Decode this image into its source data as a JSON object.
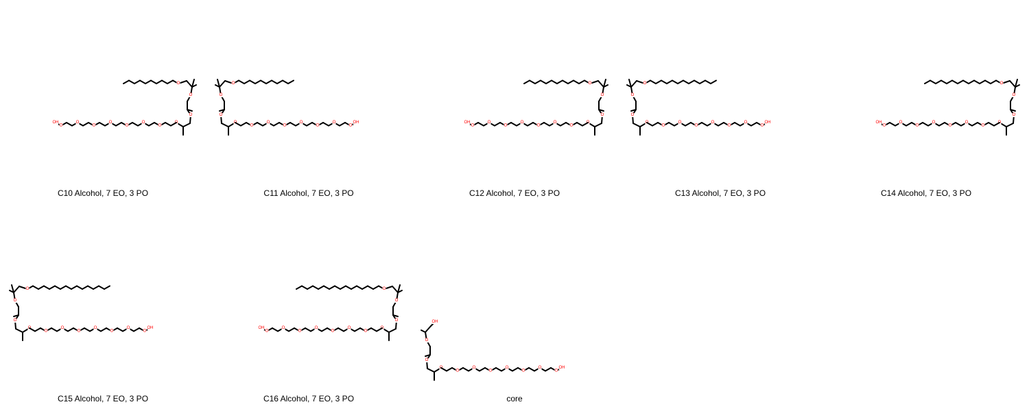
{
  "molecules": [
    {
      "caption": "C10 Alcohol, 7 EO, 3 PO",
      "alkyl_carbons": 10,
      "eo_units": 7,
      "po_units": 3,
      "terminal_group": "OH",
      "ring_atom": "O"
    },
    {
      "caption": "C11 Alcohol, 7 EO, 3 PO",
      "alkyl_carbons": 11,
      "eo_units": 7,
      "po_units": 3,
      "terminal_group": "OH",
      "ring_atom": "O"
    },
    {
      "caption": "C12 Alcohol, 7 EO, 3 PO",
      "alkyl_carbons": 12,
      "eo_units": 7,
      "po_units": 3,
      "terminal_group": "OH",
      "ring_atom": "O"
    },
    {
      "caption": "C13 Alcohol, 7 EO, 3 PO",
      "alkyl_carbons": 13,
      "eo_units": 7,
      "po_units": 3,
      "terminal_group": "OH",
      "ring_atom": "O"
    },
    {
      "caption": "C14 Alcohol, 7 EO, 3 PO",
      "alkyl_carbons": 14,
      "eo_units": 7,
      "po_units": 3,
      "terminal_group": "OH",
      "ring_atom": "O"
    },
    {
      "caption": "C15 Alcohol, 7 EO, 3 PO",
      "alkyl_carbons": 15,
      "eo_units": 7,
      "po_units": 3,
      "terminal_group": "OH",
      "ring_atom": "O"
    },
    {
      "caption": "C16 Alcohol, 7 EO, 3 PO",
      "alkyl_carbons": 16,
      "eo_units": 7,
      "po_units": 3,
      "terminal_group": "OH",
      "ring_atom": "O"
    },
    {
      "caption": "core",
      "alkyl_carbons": 0,
      "eo_units": 7,
      "po_units": 3,
      "terminal_group": "OH",
      "ring_atom": "O"
    }
  ],
  "colors": {
    "bond": "#000000",
    "heteroatom": "#ff0000",
    "background": "#ffffff"
  }
}
